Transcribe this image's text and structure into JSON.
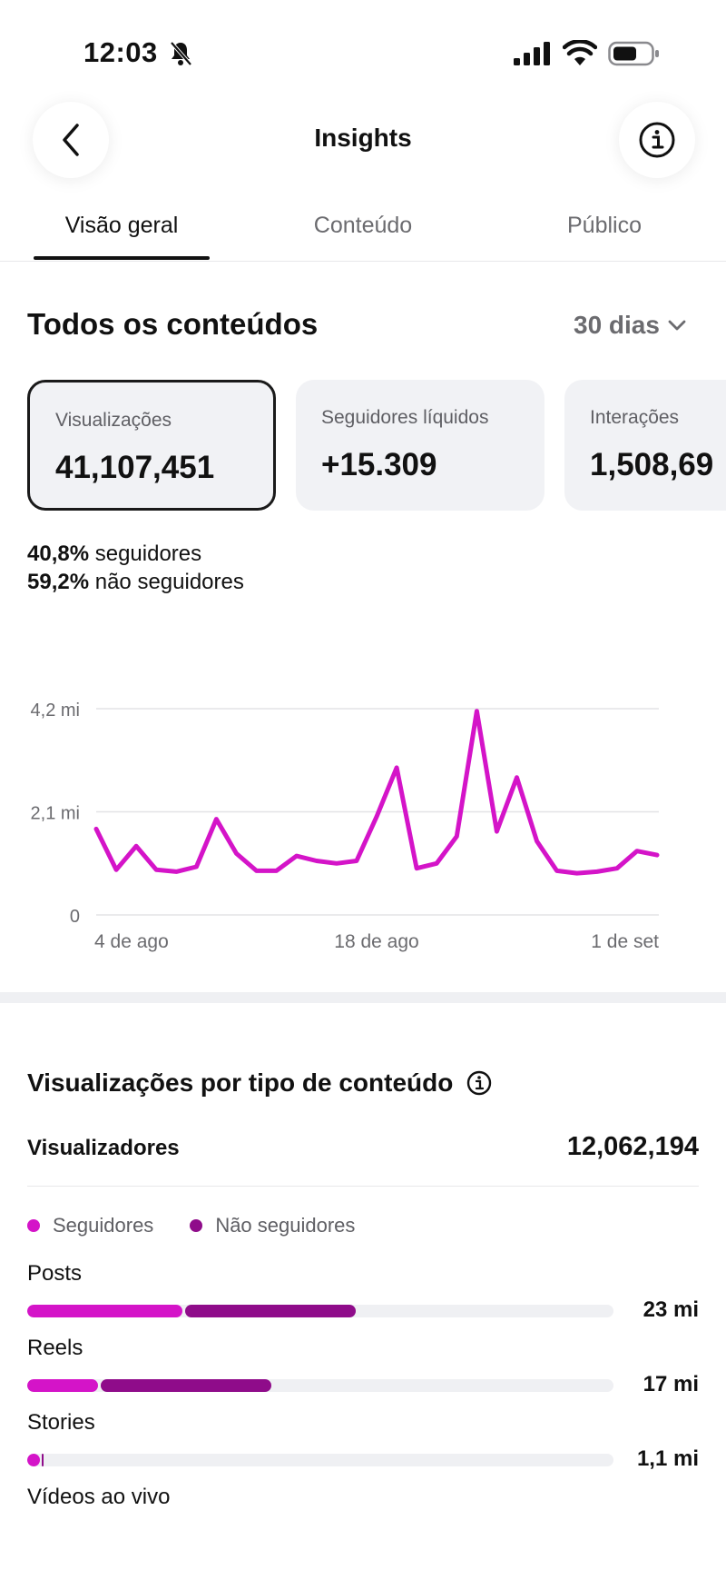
{
  "status_bar": {
    "time": "12:03",
    "icons": [
      "bell-slash-icon",
      "signal-icon",
      "wifi-icon",
      "battery-icon"
    ]
  },
  "header": {
    "title": "Insights",
    "back_icon": "chevron-left-icon",
    "info_icon": "info-icon"
  },
  "tabs": [
    {
      "label": "Visão geral",
      "active": true
    },
    {
      "label": "Conteúdo",
      "active": false
    },
    {
      "label": "Público",
      "active": false
    }
  ],
  "overview": {
    "title": "Todos os conteúdos",
    "range": "30 dias",
    "cards": [
      {
        "label": "Visualizações",
        "value": "41,107,451",
        "selected": true
      },
      {
        "label": "Seguidores líquidos",
        "value": "+15.309",
        "selected": false
      },
      {
        "label": "Interações",
        "value": "1,508,69",
        "selected": false
      }
    ],
    "followers_pct": "40,8%",
    "followers_label": "seguidores",
    "non_followers_pct": "59,2%",
    "non_followers_label": "não seguidores"
  },
  "chart_data": {
    "type": "line",
    "title": "",
    "xlabel": "",
    "ylabel": "",
    "y_ticks": [
      "0",
      "2,1 mi",
      "4,2 mi"
    ],
    "ylim": [
      0,
      4.2
    ],
    "x_ticks": [
      "4 de ago",
      "18 de ago",
      "1 de set"
    ],
    "grid": true,
    "color": "#d414c8",
    "series": [
      {
        "values": [
          1.75,
          0.92,
          1.4,
          0.92,
          0.88,
          0.98,
          1.95,
          1.25,
          0.9,
          0.9,
          1.2,
          1.1,
          1.05,
          1.1,
          2.0,
          3.0,
          0.95,
          1.05,
          1.6,
          4.15,
          1.7,
          2.8,
          1.5,
          0.9,
          0.85,
          0.88,
          0.95,
          1.3,
          1.22
        ]
      }
    ]
  },
  "content_types": {
    "title": "Visualizações por tipo de conteúdo",
    "info_icon": "info-icon",
    "viewers_label": "Visualizadores",
    "viewers_value": "12,062,194",
    "legend": [
      {
        "label": "Seguidores",
        "color": "#d414c8"
      },
      {
        "label": "Não seguidores",
        "color": "#8f0c8a"
      }
    ],
    "rows": [
      {
        "label": "Posts",
        "value": "23 mi",
        "followers": 0.265,
        "non_followers": 0.295
      },
      {
        "label": "Reels",
        "value": "17 mi",
        "followers": 0.12,
        "non_followers": 0.297
      },
      {
        "label": "Stories",
        "value": "1,1 mi",
        "followers": 0.022,
        "non_followers": 0.006
      },
      {
        "label": "Vídeos ao vivo",
        "value": "",
        "followers": 0,
        "non_followers": 0
      }
    ]
  }
}
